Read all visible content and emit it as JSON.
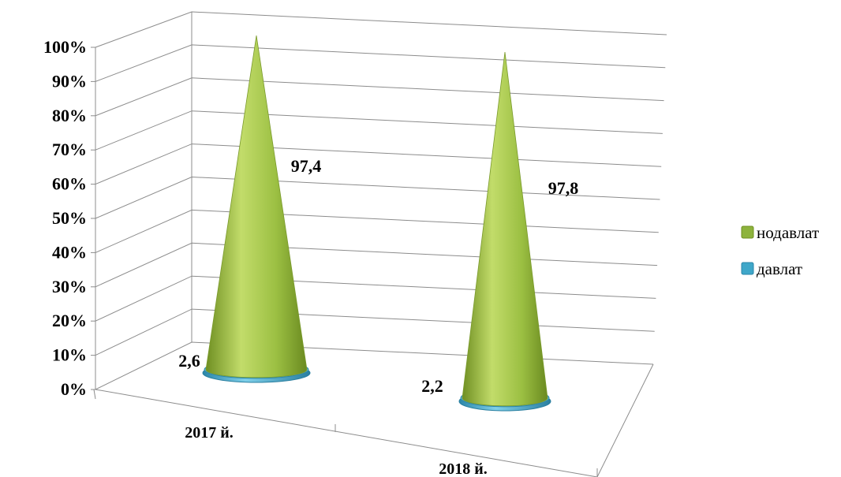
{
  "chart_data": {
    "type": "bar",
    "subtype": "3d-stacked-100-cone",
    "categories": [
      "2017 й.",
      "2018 й."
    ],
    "series": [
      {
        "name": "нодавлат",
        "values": [
          97.4,
          97.8
        ],
        "color": "#8db33c"
      },
      {
        "name": "давлат",
        "values": [
          2.6,
          2.2
        ],
        "color": "#3fa7c9"
      }
    ],
    "y_ticks": [
      "0%",
      "10%",
      "20%",
      "30%",
      "40%",
      "50%",
      "60%",
      "70%",
      "80%",
      "90%",
      "100%"
    ],
    "ylim": [
      0,
      100
    ],
    "grid": true,
    "legend_position": "right",
    "data_labels": {
      "нодавлат": [
        "97,4",
        "97,8"
      ],
      "давлат": [
        "2,6",
        "2,2"
      ]
    }
  }
}
